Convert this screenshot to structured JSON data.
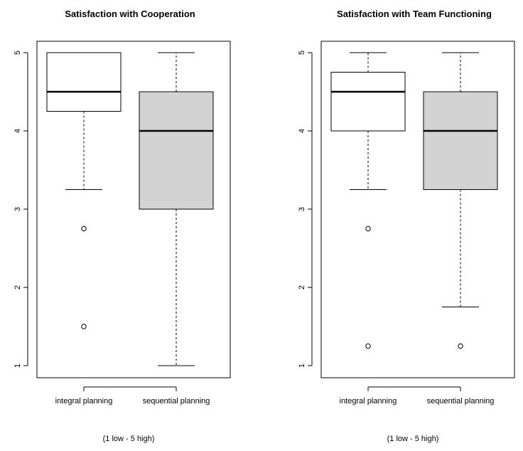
{
  "chart_data": [
    {
      "type": "box",
      "title": "Satisfaction with Cooperation",
      "xlabel": "(1 low - 5 high)",
      "ylabel": "",
      "ylim": [
        1,
        5
      ],
      "yticks": [
        "1",
        "2",
        "3",
        "4",
        "5"
      ],
      "grid": false,
      "categories": [
        "integral planning",
        "sequential planning"
      ],
      "boxes": [
        {
          "category": "integral planning",
          "whisker_low": 3.25,
          "q1": 4.25,
          "median": 4.5,
          "q3": 5,
          "whisker_high": 5,
          "outliers": [
            2.75,
            1.5
          ],
          "fill": "#ffffff"
        },
        {
          "category": "sequential planning",
          "whisker_low": 1,
          "q1": 3,
          "median": 4,
          "q3": 4.5,
          "whisker_high": 5,
          "outliers": [],
          "fill": "#d3d3d3"
        }
      ]
    },
    {
      "type": "box",
      "title": "Satisfaction with Team Functioning",
      "xlabel": "(1 low - 5 high)",
      "ylabel": "",
      "ylim": [
        1,
        5
      ],
      "yticks": [
        "1",
        "2",
        "3",
        "4",
        "5"
      ],
      "grid": false,
      "categories": [
        "integral planning",
        "sequential planning"
      ],
      "boxes": [
        {
          "category": "integral planning",
          "whisker_low": 3.25,
          "q1": 4,
          "median": 4.5,
          "q3": 4.75,
          "whisker_high": 5,
          "outliers": [
            2.75,
            1.25
          ],
          "fill": "#ffffff"
        },
        {
          "category": "sequential planning",
          "whisker_low": 1.75,
          "q1": 3.25,
          "median": 4,
          "q3": 4.5,
          "whisker_high": 5,
          "outliers": [
            1.25
          ],
          "fill": "#d3d3d3"
        }
      ]
    }
  ]
}
